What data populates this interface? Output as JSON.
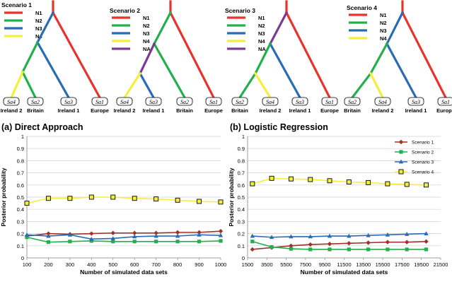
{
  "colors": {
    "N1": "#e8322b",
    "N2": "#22b04b",
    "N3": "#2a6bb5",
    "N4": "#f5ef3b",
    "NA": "#7b3a96",
    "scenario1": "#a0322b",
    "scenario2": "#22b04b",
    "scenario3": "#2a6bb5",
    "scenario4": "#f5ef3b",
    "grid": "#d0d0d0",
    "axis": "#888888"
  },
  "trees": [
    {
      "title": "Scenario 1",
      "legend": [
        {
          "label": "N1",
          "color": "N1"
        },
        {
          "label": "N2",
          "color": "N2"
        },
        {
          "label": "N3",
          "color": "N3"
        },
        {
          "label": "N4",
          "color": "N4"
        }
      ],
      "leaves": [
        {
          "code": "Sa4",
          "name": "Ireland 2"
        },
        {
          "code": "Sa2",
          "name": "Britain"
        },
        {
          "code": "Sa3",
          "name": "Ireland 1"
        },
        {
          "code": "Sa1",
          "name": "Europe"
        }
      ]
    },
    {
      "title": "Scenario 2",
      "legend": [
        {
          "label": "N1",
          "color": "N1"
        },
        {
          "label": "N2",
          "color": "N2"
        },
        {
          "label": "N3",
          "color": "N3"
        },
        {
          "label": "N4",
          "color": "N4"
        },
        {
          "label": "NA",
          "color": "NA"
        }
      ],
      "leaves": [
        {
          "code": "Sa4",
          "name": "Ireland 2"
        },
        {
          "code": "Sa3",
          "name": "Ireland 1"
        },
        {
          "code": "Sa2",
          "name": "Britain"
        },
        {
          "code": "Sa1",
          "name": "Europe"
        }
      ]
    },
    {
      "title": "Scenario 3",
      "legend": [
        {
          "label": "N1",
          "color": "N1"
        },
        {
          "label": "N2",
          "color": "N2"
        },
        {
          "label": "N3",
          "color": "N3"
        },
        {
          "label": "N4",
          "color": "N4"
        },
        {
          "label": "NA",
          "color": "NA"
        }
      ],
      "leaves": [
        {
          "code": "Sa2",
          "name": "Britain"
        },
        {
          "code": "Sa4",
          "name": "Ireland 2"
        },
        {
          "code": "Sa3",
          "name": "Ireland 1"
        },
        {
          "code": "Sa1",
          "name": "Europe"
        }
      ]
    },
    {
      "title": "Scenario 4",
      "legend": [
        {
          "label": "N1",
          "color": "N1"
        },
        {
          "label": "N2",
          "color": "N2"
        },
        {
          "label": "N3",
          "color": "N3"
        },
        {
          "label": "N4",
          "color": "N4"
        }
      ],
      "leaves": [
        {
          "code": "Sa2",
          "name": "Britain"
        },
        {
          "code": "Sa4",
          "name": "Ireland 2"
        },
        {
          "code": "Sa3",
          "name": "Ireland 1"
        },
        {
          "code": "Sa1",
          "name": "Europe"
        }
      ]
    }
  ],
  "chart_data": [
    {
      "type": "line",
      "title": "(a) Direct Approach",
      "xlabel": "Number of simulated data sets",
      "ylabel": "Posterior probability",
      "x": [
        100,
        200,
        300,
        400,
        500,
        600,
        700,
        800,
        900,
        1000
      ],
      "xticks": [
        100,
        200,
        300,
        400,
        500,
        600,
        700,
        800,
        900,
        1000
      ],
      "xlim": [
        100,
        1000
      ],
      "ylim": [
        0,
        1
      ],
      "yticks": [
        0,
        0.1,
        0.2,
        0.3,
        0.4,
        0.5,
        0.6,
        0.7,
        0.8,
        0.9,
        1
      ],
      "grid": "horizontal",
      "series": [
        {
          "color": "scenario1",
          "marker": "diamond",
          "values": [
            0.18,
            0.2,
            0.195,
            0.2,
            0.205,
            0.205,
            0.205,
            0.21,
            0.21,
            0.22
          ]
        },
        {
          "color": "scenario2",
          "marker": "square",
          "values": [
            0.17,
            0.13,
            0.135,
            0.14,
            0.135,
            0.135,
            0.135,
            0.135,
            0.135,
            0.14
          ]
        },
        {
          "color": "scenario3",
          "marker": "triangle",
          "values": [
            0.19,
            0.18,
            0.19,
            0.155,
            0.16,
            0.175,
            0.18,
            0.18,
            0.19,
            0.185
          ]
        },
        {
          "color": "scenario4",
          "marker": "hollow-square",
          "values": [
            0.45,
            0.49,
            0.49,
            0.5,
            0.5,
            0.49,
            0.485,
            0.475,
            0.465,
            0.46
          ]
        }
      ]
    },
    {
      "type": "line",
      "title": "(b) Logistic Regression",
      "xlabel": "Number of simulated data sets",
      "ylabel": "Posterior probability",
      "x": [
        2000,
        4000,
        6000,
        8000,
        10000,
        12000,
        14000,
        16000,
        18000,
        20000
      ],
      "xticks": [
        1500,
        3500,
        5500,
        7500,
        9500,
        11500,
        13500,
        15500,
        17500,
        19500,
        21500
      ],
      "xlim": [
        1500,
        21500
      ],
      "ylim": [
        0,
        1
      ],
      "yticks": [
        0,
        0.1,
        0.2,
        0.3,
        0.4,
        0.5,
        0.6,
        0.7,
        0.8,
        0.9,
        1
      ],
      "grid": "horizontal",
      "legend_position": "top-right",
      "series": [
        {
          "name": "Scenario 1",
          "color": "scenario1",
          "marker": "diamond",
          "values": [
            0.07,
            0.085,
            0.1,
            0.11,
            0.115,
            0.12,
            0.125,
            0.13,
            0.13,
            0.135
          ]
        },
        {
          "name": "Scenario 2",
          "color": "scenario2",
          "marker": "square",
          "values": [
            0.135,
            0.09,
            0.075,
            0.07,
            0.07,
            0.07,
            0.07,
            0.07,
            0.07,
            0.07
          ]
        },
        {
          "name": "Scenario 3",
          "color": "scenario3",
          "marker": "triangle",
          "values": [
            0.18,
            0.17,
            0.175,
            0.175,
            0.18,
            0.18,
            0.185,
            0.19,
            0.195,
            0.2
          ]
        },
        {
          "name": "Scenario 4",
          "color": "scenario4",
          "marker": "hollow-square",
          "values": [
            0.61,
            0.655,
            0.65,
            0.645,
            0.635,
            0.625,
            0.62,
            0.61,
            0.605,
            0.6
          ]
        }
      ]
    }
  ]
}
